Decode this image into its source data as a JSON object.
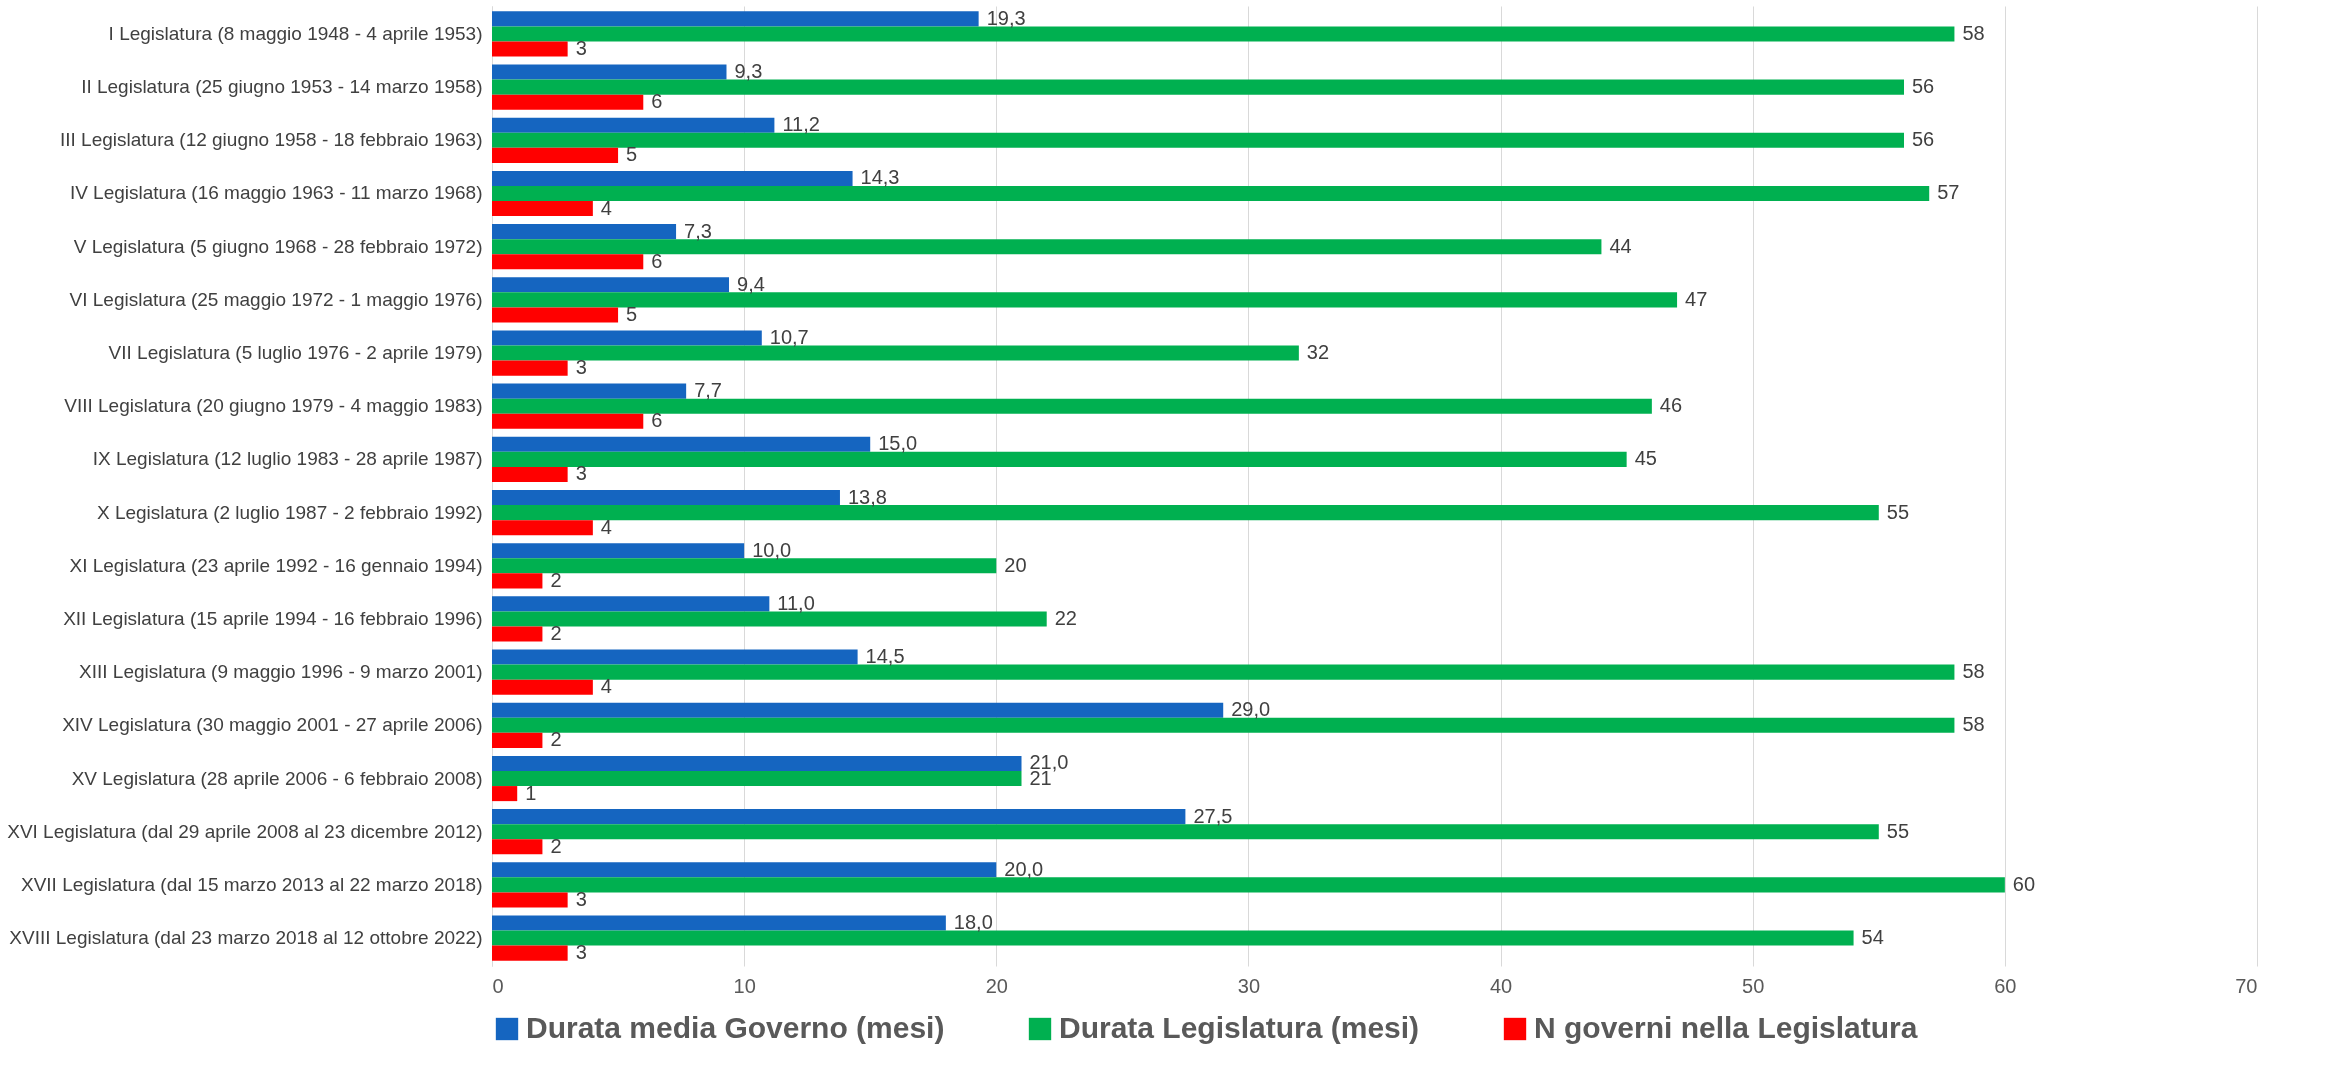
{
  "chart_data": {
    "type": "bar",
    "orientation": "horizontal",
    "categories": [
      "I Legislatura (8 maggio 1948 - 4 aprile 1953)",
      "II Legislatura (25 giugno 1953 - 14 marzo 1958)",
      "III Legislatura (12 giugno 1958 - 18 febbraio 1963)",
      "IV Legislatura (16 maggio 1963 - 11 marzo 1968)",
      "V Legislatura (5 giugno 1968 - 28 febbraio 1972)",
      "VI Legislatura (25 maggio 1972 - 1 maggio 1976)",
      "VII Legislatura (5 luglio 1976 - 2 aprile 1979)",
      "VIII Legislatura (20 giugno 1979 - 4 maggio 1983)",
      "IX Legislatura (12 luglio 1983 - 28 aprile 1987)",
      "X Legislatura (2 luglio 1987 - 2 febbraio 1992)",
      "XI Legislatura (23 aprile 1992 - 16 gennaio 1994)",
      "XII Legislatura (15 aprile 1994 - 16 febbraio 1996)",
      "XIII Legislatura (9 maggio 1996 - 9 marzo 2001)",
      "XIV Legislatura (30 maggio 2001 - 27 aprile 2006)",
      "XV Legislatura (28 aprile 2006 - 6 febbraio 2008)",
      "XVI Legislatura (dal 29 aprile 2008 al 23 dicembre 2012)",
      "XVII Legislatura (dal 15 marzo 2013 al 22 marzo 2018)",
      "XVIII Legislatura (dal 23 marzo 2018 al 12 ottobre 2022)"
    ],
    "series": [
      {
        "name": "Durata media Governo (mesi)",
        "color": "#1565c0",
        "values": [
          19.3,
          9.3,
          11.2,
          14.3,
          7.3,
          9.4,
          10.7,
          7.7,
          15.0,
          13.8,
          10.0,
          11.0,
          14.5,
          29.0,
          21.0,
          27.5,
          20.0,
          18.0
        ],
        "value_labels": [
          "19,3",
          "9,3",
          "11,2",
          "14,3",
          "7,3",
          "9,4",
          "10,7",
          "7,7",
          "15,0",
          "13,8",
          "10,0",
          "11,0",
          "14,5",
          "29,0",
          "21,0",
          "27,5",
          "20,0",
          "18,0"
        ]
      },
      {
        "name": "Durata Legislatura (mesi)",
        "color": "#00b050",
        "values": [
          58,
          56,
          56,
          57,
          44,
          47,
          32,
          46,
          45,
          55,
          20,
          22,
          58,
          58,
          21,
          55,
          60,
          54
        ],
        "value_labels": [
          "58",
          "56",
          "56",
          "57",
          "44",
          "47",
          "32",
          "46",
          "45",
          "55",
          "20",
          "22",
          "58",
          "58",
          "21",
          "55",
          "60",
          "54"
        ]
      },
      {
        "name": "N governi nella Legislatura",
        "color": "#ff0000",
        "values": [
          3,
          6,
          5,
          4,
          6,
          5,
          3,
          6,
          3,
          4,
          2,
          2,
          4,
          2,
          1,
          2,
          3,
          3
        ],
        "value_labels": [
          "3",
          "6",
          "5",
          "4",
          "6",
          "5",
          "3",
          "6",
          "3",
          "4",
          "2",
          "2",
          "4",
          "2",
          "1",
          "2",
          "3",
          "3"
        ]
      }
    ],
    "xlim": [
      0,
      70
    ],
    "xticks": [
      0,
      10,
      20,
      30,
      40,
      50,
      60,
      70
    ],
    "grid": "x",
    "legend": "bottom"
  }
}
